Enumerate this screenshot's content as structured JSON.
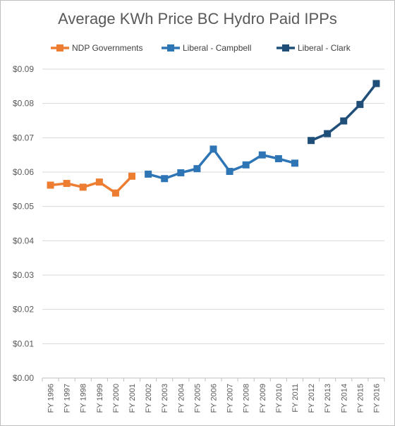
{
  "chart_data": {
    "type": "line",
    "title": "Average KWh Price BC Hydro Paid IPPs",
    "xlabel": "",
    "ylabel": "",
    "categories": [
      "FY 1996",
      "FY 1997",
      "FY 1998",
      "FY 1999",
      "FY 2000",
      "FY 2001",
      "FY 2002",
      "FY 2003",
      "FY 2004",
      "FY 2005",
      "FY 2006",
      "FY 2007",
      "FY 2008",
      "FY 2009",
      "FY 2010",
      "FY 2011",
      "FY 2012",
      "FY 2013",
      "FY 2014",
      "FY 2015",
      "FY 2016"
    ],
    "ylim": [
      0,
      0.09
    ],
    "yticks": [
      "$0.00",
      "$0.01",
      "$0.02",
      "$0.03",
      "$0.04",
      "$0.05",
      "$0.06",
      "$0.07",
      "$0.08",
      "$0.09"
    ],
    "grid": true,
    "legend_position": "top",
    "series": [
      {
        "name": "NDP Governments",
        "color": "#ed7d31",
        "x": [
          "FY 1996",
          "FY 1997",
          "FY 1998",
          "FY 1999",
          "FY 2000",
          "FY 2001"
        ],
        "values": [
          0.0562,
          0.0567,
          0.0556,
          0.0571,
          0.0539,
          0.0588
        ]
      },
      {
        "name": "Liberal - Campbell",
        "color": "#2e75b6",
        "x": [
          "FY 2002",
          "FY 2003",
          "FY 2004",
          "FY 2005",
          "FY 2006",
          "FY 2007",
          "FY 2008",
          "FY 2009",
          "FY 2010",
          "FY 2011"
        ],
        "values": [
          0.0594,
          0.0581,
          0.0598,
          0.061,
          0.0667,
          0.0602,
          0.0621,
          0.065,
          0.0639,
          0.0626
        ]
      },
      {
        "name": "Liberal - Clark",
        "color": "#1f4e79",
        "x": [
          "FY 2012",
          "FY 2013",
          "FY 2014",
          "FY 2015",
          "FY 2016"
        ],
        "values": [
          0.0692,
          0.0712,
          0.0749,
          0.0797,
          0.0858
        ]
      }
    ]
  }
}
